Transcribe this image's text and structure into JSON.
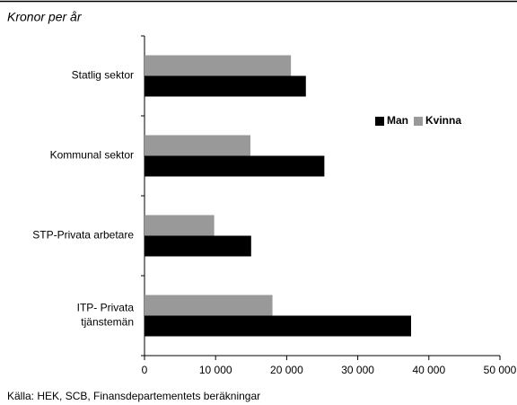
{
  "chart_data": {
    "type": "hbar",
    "title": "Kronor per år",
    "source": "Källa: HEK, SCB, Finansdepartementets beräkningar",
    "categories": [
      "Statlig sektor",
      "Kommunal sektor",
      "STP-Privata arbetare",
      "ITP- Privata\ntjänstemän"
    ],
    "series": [
      {
        "name": "Man",
        "color": "#000000",
        "values": [
          22700,
          25300,
          15000,
          37500
        ]
      },
      {
        "name": "Kvinna",
        "color": "#999999",
        "values": [
          20600,
          14900,
          9800,
          18000
        ]
      }
    ],
    "xlim": [
      0,
      50000
    ],
    "xticks": [
      0,
      {
        "value": 10000,
        "label": "10 000"
      },
      {
        "value": 20000,
        "label": "20 000"
      },
      {
        "value": 30000,
        "label": "30 000"
      },
      {
        "value": 40000,
        "label": "40 000"
      },
      {
        "value": 50000,
        "label": "50 000"
      }
    ],
    "legend": "upper right"
  }
}
